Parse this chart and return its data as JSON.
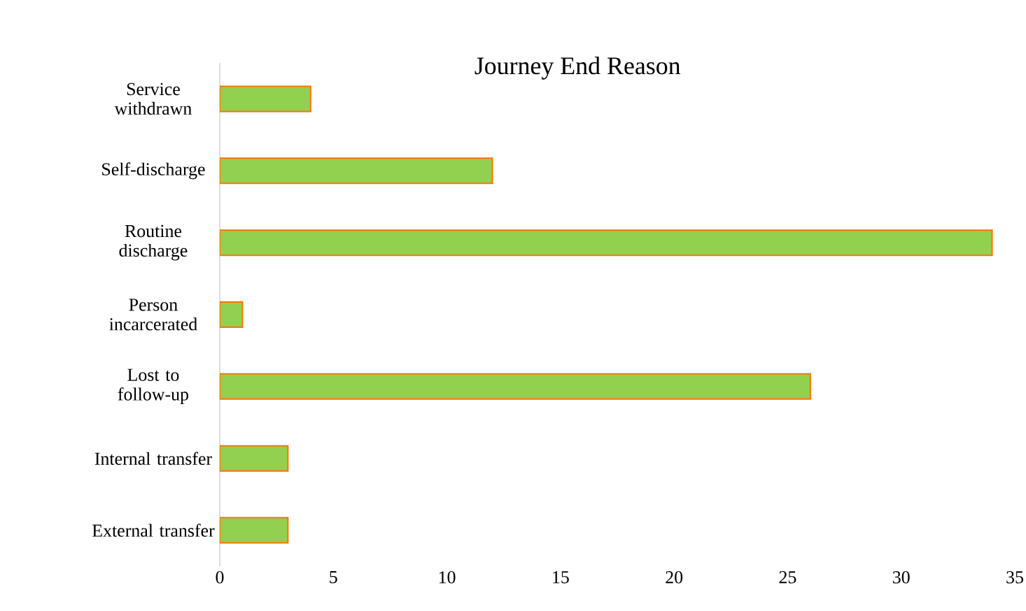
{
  "chart_data": {
    "type": "bar",
    "orientation": "horizontal",
    "title": "Journey End Reason",
    "categories": [
      "Service withdrawn",
      "Self-discharge",
      "Routine discharge",
      "Person incarcerated",
      "Lost to follow-up",
      "Internal transfer",
      "External transfer"
    ],
    "values": [
      4,
      12,
      34,
      1,
      26,
      3,
      3
    ],
    "color": "#92d050",
    "xlim": [
      0,
      35
    ],
    "xticks": [
      0,
      5,
      10,
      15,
      20,
      25,
      30,
      35
    ],
    "grid": false
  }
}
